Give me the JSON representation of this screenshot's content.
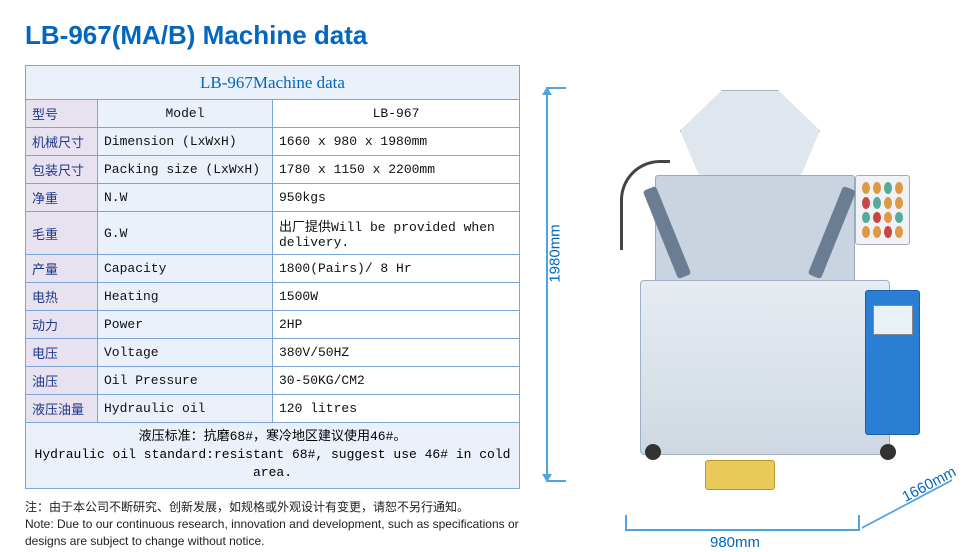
{
  "title": "LB-967(MA/B) Machine data",
  "table": {
    "caption": "LB-967Machine data",
    "header": {
      "cn": "型号",
      "en": "Model",
      "val": "LB-967"
    },
    "rows": [
      {
        "cn": "机械尺寸",
        "en": "Dimension (LxWxH)",
        "val": "1660 x 980 x 1980mm"
      },
      {
        "cn": "包装尺寸",
        "en": "Packing size (LxWxH)",
        "val": "1780 x 1150 x 2200mm"
      },
      {
        "cn": "净重",
        "en": "N.W",
        "val": "950kgs"
      },
      {
        "cn": "毛重",
        "en": "G.W",
        "val": "出厂提供Will be provided when delivery."
      },
      {
        "cn": "产量",
        "en": "Capacity",
        "val": "1800(Pairs)/ 8 Hr"
      },
      {
        "cn": "电热",
        "en": "Heating",
        "val": "1500W"
      },
      {
        "cn": "动力",
        "en": "Power",
        "val": "2HP"
      },
      {
        "cn": "电压",
        "en": "Voltage",
        "val": "380V/50HZ"
      },
      {
        "cn": "油压",
        "en": "Oil Pressure",
        "val": "30-50KG/CM2"
      },
      {
        "cn": "液压油量",
        "en": "Hydraulic oil",
        "val": "120 litres"
      }
    ],
    "note_cn": "液压标准：抗磨68#，寒冷地区建议使用46#。",
    "note_en": "Hydraulic oil standard:resistant 68#, suggest use 46# in cold area."
  },
  "footnote": {
    "cn": "注：由于本公司不断研究、创新发展，如规格或外观设计有变更，请恕不另行通知。",
    "en": "Note: Due to our continuous research, innovation and development, such as specifications or designs are subject to change without  notice."
  },
  "dimensions": {
    "height": "1980mm",
    "width": "980mm",
    "depth": "1660mm"
  },
  "colors": {
    "title": "#0367bf",
    "border": "#7da6d8",
    "cn_bg": "#e8e1f0",
    "en_bg": "#eaf1fa",
    "dim_line": "#4fa3e3"
  }
}
